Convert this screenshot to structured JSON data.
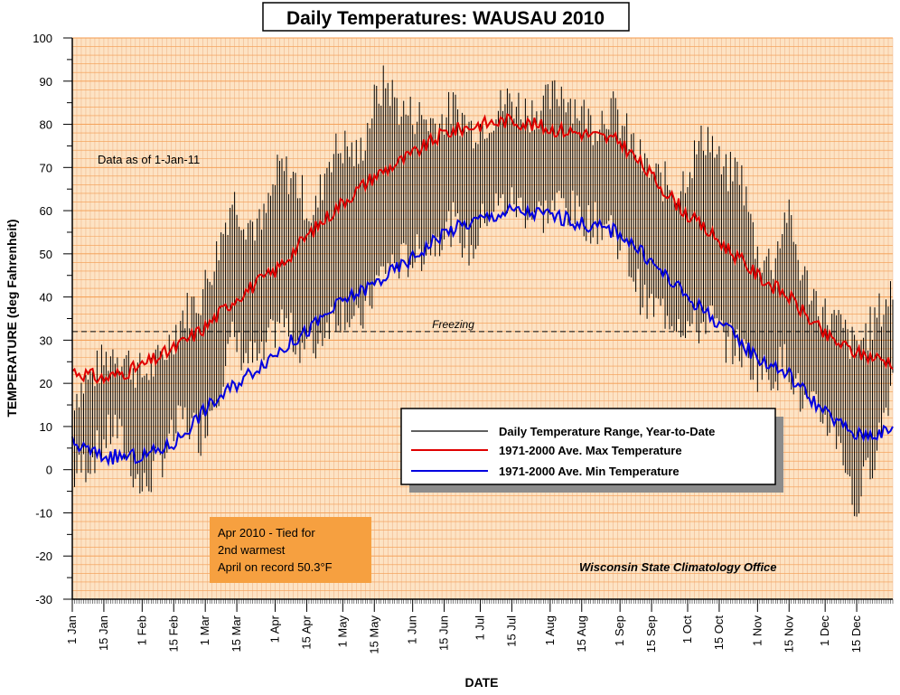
{
  "chart_data": {
    "type": "line",
    "title": "Daily Temperatures: WAUSAU 2010",
    "xlabel": "DATE",
    "ylabel": "TEMPERATURE (deg Fahrenheit)",
    "ylim": [
      -30,
      100
    ],
    "yticks": [
      100,
      90,
      80,
      70,
      60,
      50,
      40,
      30,
      20,
      10,
      0,
      -10,
      -20,
      -30
    ],
    "x_tick_labels": [
      {
        "label": "1 Jan",
        "day": 1
      },
      {
        "label": "15 Jan",
        "day": 15
      },
      {
        "label": "1 Feb",
        "day": 32
      },
      {
        "label": "15 Feb",
        "day": 46
      },
      {
        "label": "1 Mar",
        "day": 60
      },
      {
        "label": "15 Mar",
        "day": 74
      },
      {
        "label": "1 Apr",
        "day": 91
      },
      {
        "label": "15 Apr",
        "day": 105
      },
      {
        "label": "1 May",
        "day": 121
      },
      {
        "label": "15 May",
        "day": 135
      },
      {
        "label": "1 Jun",
        "day": 152
      },
      {
        "label": "15 Jun",
        "day": 166
      },
      {
        "label": "1 Jul",
        "day": 182
      },
      {
        "label": "15 Jul",
        "day": 196
      },
      {
        "label": "1 Aug",
        "day": 213
      },
      {
        "label": "15 Aug",
        "day": 227
      },
      {
        "label": "1 Sep",
        "day": 244
      },
      {
        "label": "15 Sep",
        "day": 258
      },
      {
        "label": "1 Oct",
        "day": 274
      },
      {
        "label": "15 Oct",
        "day": 288
      },
      {
        "label": "1 Nov",
        "day": 305
      },
      {
        "label": "15 Nov",
        "day": 319
      },
      {
        "label": "1 Dec",
        "day": 335
      },
      {
        "label": "15 Dec",
        "day": 349
      }
    ],
    "xlim": [
      1,
      365
    ],
    "grid": true,
    "legend_position": "lower-right",
    "series": [
      {
        "name": "1971-2000 Ave. Max Temperature",
        "color": "#e00000",
        "points": [
          [
            1,
            23
          ],
          [
            15,
            21
          ],
          [
            32,
            24
          ],
          [
            46,
            28
          ],
          [
            60,
            33
          ],
          [
            74,
            40
          ],
          [
            91,
            46
          ],
          [
            105,
            54
          ],
          [
            121,
            62
          ],
          [
            135,
            68
          ],
          [
            152,
            73
          ],
          [
            166,
            78
          ],
          [
            182,
            80
          ],
          [
            196,
            81
          ],
          [
            213,
            79
          ],
          [
            227,
            78
          ],
          [
            244,
            76
          ],
          [
            258,
            68
          ],
          [
            274,
            59
          ],
          [
            288,
            53
          ],
          [
            305,
            45
          ],
          [
            319,
            40
          ],
          [
            335,
            31
          ],
          [
            349,
            27
          ],
          [
            365,
            25
          ]
        ]
      },
      {
        "name": "1971-2000 Ave. Min Temperature",
        "color": "#0000e0",
        "points": [
          [
            1,
            6
          ],
          [
            15,
            3
          ],
          [
            32,
            3
          ],
          [
            46,
            6
          ],
          [
            60,
            14
          ],
          [
            74,
            20
          ],
          [
            91,
            27
          ],
          [
            105,
            32
          ],
          [
            121,
            39
          ],
          [
            135,
            43
          ],
          [
            152,
            49
          ],
          [
            166,
            55
          ],
          [
            182,
            58
          ],
          [
            196,
            60
          ],
          [
            213,
            59
          ],
          [
            227,
            57
          ],
          [
            244,
            55
          ],
          [
            258,
            48
          ],
          [
            274,
            40
          ],
          [
            288,
            34
          ],
          [
            305,
            26
          ],
          [
            319,
            22
          ],
          [
            335,
            13
          ],
          [
            349,
            8
          ],
          [
            365,
            9
          ]
        ]
      },
      {
        "name": "Daily Temperature Range, Year-to-Date",
        "color": "#000000",
        "type": "range",
        "high_anchors": [
          [
            1,
            17
          ],
          [
            10,
            22
          ],
          [
            20,
            28
          ],
          [
            32,
            22
          ],
          [
            40,
            25
          ],
          [
            50,
            36
          ],
          [
            58,
            40
          ],
          [
            65,
            50
          ],
          [
            72,
            63
          ],
          [
            78,
            58
          ],
          [
            85,
            56
          ],
          [
            93,
            70
          ],
          [
            100,
            67
          ],
          [
            108,
            58
          ],
          [
            115,
            73
          ],
          [
            122,
            75
          ],
          [
            128,
            72
          ],
          [
            135,
            85
          ],
          [
            140,
            90
          ],
          [
            147,
            83
          ],
          [
            155,
            82
          ],
          [
            163,
            80
          ],
          [
            170,
            84
          ],
          [
            178,
            79
          ],
          [
            185,
            81
          ],
          [
            195,
            86
          ],
          [
            203,
            83
          ],
          [
            210,
            84
          ],
          [
            218,
            88
          ],
          [
            225,
            84
          ],
          [
            232,
            80
          ],
          [
            240,
            84
          ],
          [
            248,
            77
          ],
          [
            255,
            70
          ],
          [
            262,
            67
          ],
          [
            270,
            65
          ],
          [
            278,
            74
          ],
          [
            283,
            78
          ],
          [
            290,
            68
          ],
          [
            297,
            70
          ],
          [
            305,
            50
          ],
          [
            312,
            48
          ],
          [
            318,
            60
          ],
          [
            325,
            45
          ],
          [
            335,
            36
          ],
          [
            342,
            33
          ],
          [
            348,
            28
          ],
          [
            355,
            33
          ],
          [
            361,
            38
          ],
          [
            365,
            42
          ]
        ],
        "low_anchors": [
          [
            1,
            -2
          ],
          [
            10,
            3
          ],
          [
            20,
            10
          ],
          [
            32,
            -5
          ],
          [
            40,
            2
          ],
          [
            50,
            12
          ],
          [
            58,
            8
          ],
          [
            65,
            18
          ],
          [
            72,
            30
          ],
          [
            78,
            26
          ],
          [
            85,
            25
          ],
          [
            93,
            35
          ],
          [
            100,
            30
          ],
          [
            108,
            28
          ],
          [
            115,
            35
          ],
          [
            122,
            37
          ],
          [
            128,
            33
          ],
          [
            135,
            42
          ],
          [
            140,
            47
          ],
          [
            147,
            48
          ],
          [
            155,
            50
          ],
          [
            163,
            54
          ],
          [
            170,
            57
          ],
          [
            178,
            50
          ],
          [
            185,
            60
          ],
          [
            195,
            62
          ],
          [
            203,
            60
          ],
          [
            210,
            59
          ],
          [
            218,
            62
          ],
          [
            225,
            59
          ],
          [
            232,
            57
          ],
          [
            240,
            57
          ],
          [
            248,
            48
          ],
          [
            255,
            38
          ],
          [
            262,
            37
          ],
          [
            270,
            35
          ],
          [
            278,
            32
          ],
          [
            283,
            36
          ],
          [
            290,
            30
          ],
          [
            297,
            28
          ],
          [
            305,
            23
          ],
          [
            312,
            22
          ],
          [
            318,
            26
          ],
          [
            325,
            15
          ],
          [
            335,
            12
          ],
          [
            342,
            7
          ],
          [
            348,
            -10
          ],
          [
            355,
            1
          ],
          [
            361,
            12
          ],
          [
            365,
            22
          ]
        ]
      }
    ],
    "reference_line": {
      "value": 32,
      "label": "Freezing",
      "style": "dashed"
    },
    "annotations": {
      "data_as_of": "Data as of 1-Jan-11",
      "callout_lines": [
        "Apr 2010 - Tied for",
        "2nd warmest",
        "April on record 50.3°F"
      ],
      "credit": "Wisconsin State Climatology Office"
    }
  },
  "colors": {
    "plot_background": "#fde3c4",
    "grid_major": "#f59a4a",
    "grid_minor": "#e8a070",
    "callout_fill": "#f6a040",
    "legend_fill": "#ffffff",
    "legend_shadow": "#8c8c8c"
  }
}
